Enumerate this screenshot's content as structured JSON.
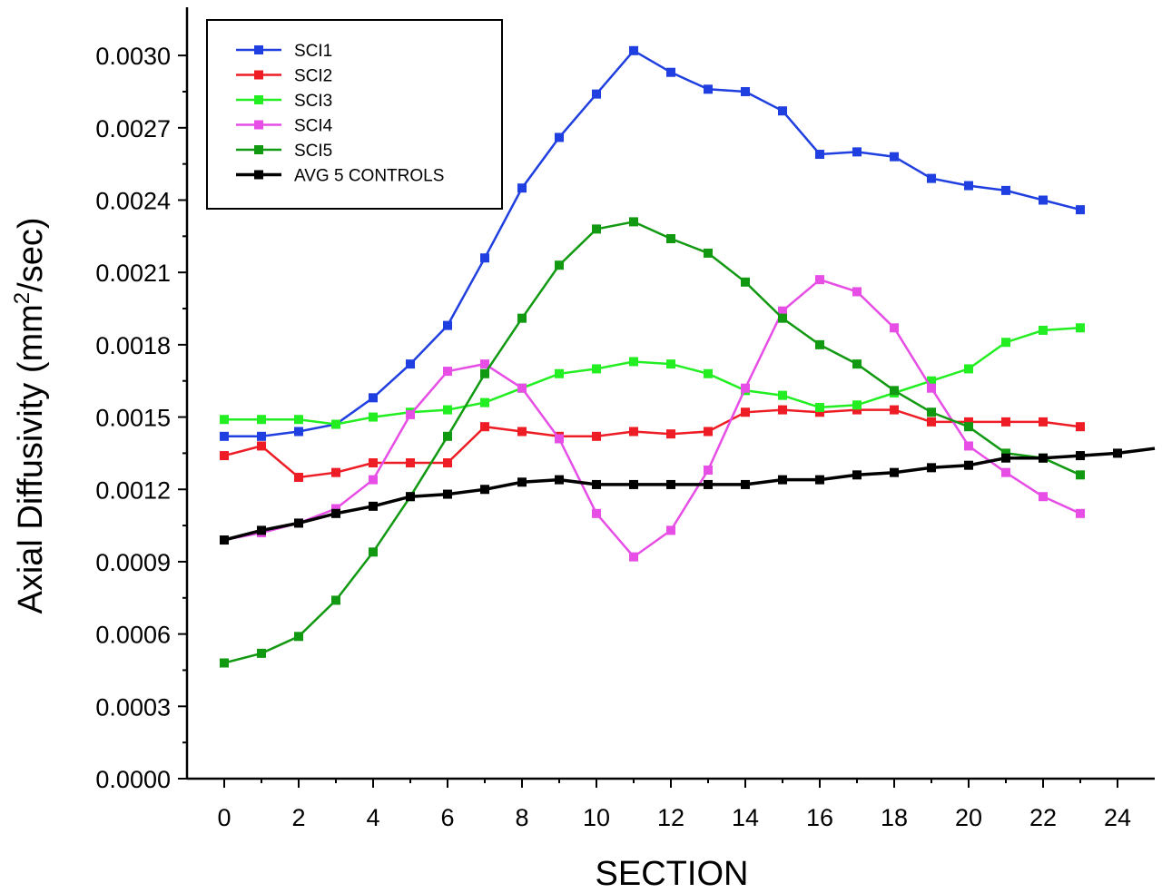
{
  "chart_data": {
    "type": "line",
    "xlabel": "SECTION",
    "ylabel_prefix": "Axial Diffusivity (mm",
    "ylabel_sup": "2",
    "ylabel_suffix": "/sec)",
    "xlim": [
      -1,
      25
    ],
    "ylim": [
      0,
      0.0032
    ],
    "xticks": [
      0,
      2,
      4,
      6,
      8,
      10,
      12,
      14,
      16,
      18,
      20,
      22,
      24
    ],
    "yticks": [
      0.0,
      0.0003,
      0.0006,
      0.0009,
      0.0012,
      0.0015,
      0.0018,
      0.0021,
      0.0024,
      0.0027,
      0.003
    ],
    "ytick_labels": [
      "0.0000",
      "0.0003",
      "0.0006",
      "0.0009",
      "0.0012",
      "0.0015",
      "0.0018",
      "0.0021",
      "0.0024",
      "0.0027",
      "0.0030"
    ],
    "grid": false,
    "legend_position": "top-left",
    "series": [
      {
        "name": "SCI1",
        "color": "#1f3fe0",
        "x": [
          0,
          1,
          2,
          3,
          4,
          5,
          6,
          7,
          8,
          9,
          10,
          11,
          12,
          13,
          14,
          15,
          16,
          17,
          18,
          19,
          20,
          21,
          22,
          23
        ],
        "values": [
          0.00142,
          0.00142,
          0.00144,
          0.00147,
          0.00158,
          0.00172,
          0.00188,
          0.00216,
          0.00245,
          0.00266,
          0.00284,
          0.00302,
          0.00293,
          0.00286,
          0.00285,
          0.00277,
          0.00259,
          0.0026,
          0.00258,
          0.00249,
          0.00246,
          0.00244,
          0.0024,
          0.00236
        ]
      },
      {
        "name": "SCI2",
        "color": "#ee1c25",
        "x": [
          0,
          1,
          2,
          3,
          4,
          5,
          6,
          7,
          8,
          9,
          10,
          11,
          12,
          13,
          14,
          15,
          16,
          17,
          18,
          19,
          20,
          21,
          22,
          23
        ],
        "values": [
          0.00134,
          0.00138,
          0.00125,
          0.00127,
          0.00131,
          0.00131,
          0.00131,
          0.00146,
          0.00144,
          0.00142,
          0.00142,
          0.00144,
          0.00143,
          0.00144,
          0.00152,
          0.00153,
          0.00152,
          0.00153,
          0.00153,
          0.00148,
          0.00148,
          0.00148,
          0.00148,
          0.00146
        ]
      },
      {
        "name": "SCI3",
        "color": "#22ee22",
        "x": [
          0,
          1,
          2,
          3,
          4,
          5,
          6,
          7,
          8,
          9,
          10,
          11,
          12,
          13,
          14,
          15,
          16,
          17,
          18,
          19,
          20,
          21,
          22,
          23
        ],
        "values": [
          0.00149,
          0.00149,
          0.00149,
          0.00147,
          0.0015,
          0.00152,
          0.00153,
          0.00156,
          0.00162,
          0.00168,
          0.0017,
          0.00173,
          0.00172,
          0.00168,
          0.00161,
          0.00159,
          0.00154,
          0.00155,
          0.0016,
          0.00165,
          0.0017,
          0.00181,
          0.00186,
          0.00187
        ]
      },
      {
        "name": "SCI4",
        "color": "#e64ee6",
        "x": [
          0,
          1,
          2,
          3,
          4,
          5,
          6,
          7,
          8,
          9,
          10,
          11,
          12,
          13,
          14,
          15,
          16,
          17,
          18,
          19,
          20,
          21,
          22,
          23
        ],
        "values": [
          0.00099,
          0.00102,
          0.00106,
          0.00112,
          0.00124,
          0.00151,
          0.00169,
          0.00172,
          0.00162,
          0.00141,
          0.0011,
          0.00092,
          0.00103,
          0.00128,
          0.00162,
          0.00194,
          0.00207,
          0.00202,
          0.00187,
          0.00162,
          0.00138,
          0.00127,
          0.00117,
          0.0011
        ]
      },
      {
        "name": "SCI5",
        "color": "#119911",
        "x": [
          0,
          1,
          2,
          3,
          4,
          5,
          6,
          7,
          8,
          9,
          10,
          11,
          12,
          13,
          14,
          15,
          16,
          17,
          18,
          19,
          20,
          21,
          22,
          23
        ],
        "values": [
          0.00048,
          0.00052,
          0.00059,
          0.00074,
          0.00094,
          0.00117,
          0.00142,
          0.00168,
          0.00191,
          0.00213,
          0.00228,
          0.00231,
          0.00224,
          0.00218,
          0.00206,
          0.00191,
          0.0018,
          0.00172,
          0.00161,
          0.00152,
          0.00146,
          0.00135,
          0.00133,
          0.00126
        ]
      },
      {
        "name": "AVG 5 CONTROLS",
        "color": "#000000",
        "x": [
          0,
          1,
          2,
          3,
          4,
          5,
          6,
          7,
          8,
          9,
          10,
          11,
          12,
          13,
          14,
          15,
          16,
          17,
          18,
          19,
          20,
          21,
          22,
          23,
          24,
          25
        ],
        "values": [
          0.00099,
          0.00103,
          0.00106,
          0.0011,
          0.00113,
          0.00117,
          0.00118,
          0.0012,
          0.00123,
          0.00124,
          0.00122,
          0.00122,
          0.00122,
          0.00122,
          0.00122,
          0.00124,
          0.00124,
          0.00126,
          0.00127,
          0.00129,
          0.0013,
          0.00133,
          0.00133,
          0.00134,
          0.00135,
          0.00137
        ]
      }
    ]
  }
}
